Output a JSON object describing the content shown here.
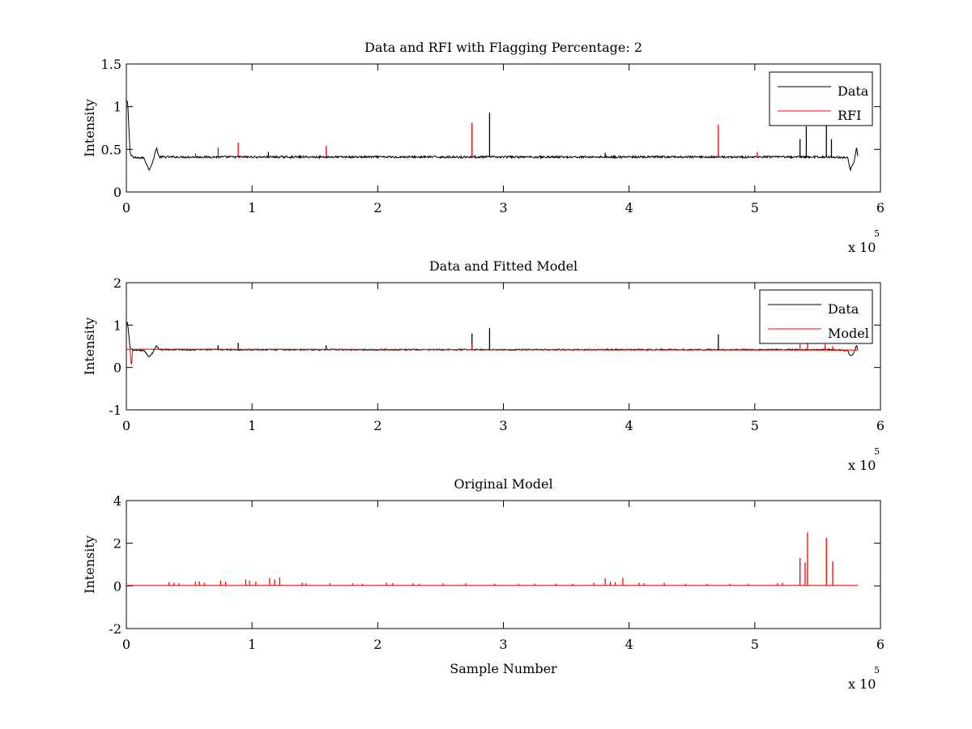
{
  "figure": {
    "background": "#ffffff"
  },
  "chart_data": [
    {
      "type": "line",
      "title": "Data and RFI with Flagging Percentage: 2",
      "xlabel": "",
      "ylabel": "Intensity",
      "xlim": [
        0,
        6
      ],
      "ylim": [
        0,
        1.5
      ],
      "x_multiplier_base": "x 10",
      "x_multiplier_exp": "5",
      "xticks": [
        0,
        1,
        2,
        3,
        4,
        5,
        6
      ],
      "xtick_labels": [
        "0",
        "1",
        "2",
        "3",
        "4",
        "5",
        "6"
      ],
      "yticks": [
        0,
        0.5,
        1,
        1.5
      ],
      "ytick_labels": [
        "0",
        "0.5",
        "1",
        "1.5"
      ],
      "legend_position": "top-right",
      "series": [
        {
          "name": "Data",
          "color": "#000000",
          "baseline": 0.41,
          "noise": 0.012,
          "x_end": 5.82,
          "start_value": 1.05,
          "features": [
            {
              "x": 0.0,
              "v": 1.05
            },
            {
              "x": 0.01,
              "v": 1.06
            },
            {
              "x": 0.03,
              "v": 0.45
            },
            {
              "x": 0.06,
              "v": 0.4
            },
            {
              "x": 0.14,
              "v": 0.4
            },
            {
              "x": 0.18,
              "v": 0.26
            },
            {
              "x": 0.21,
              "v": 0.35
            },
            {
              "x": 0.24,
              "v": 0.52
            },
            {
              "x": 0.26,
              "v": 0.41
            },
            {
              "x": 5.6,
              "v": 0.41
            },
            {
              "x": 5.74,
              "v": 0.4
            },
            {
              "x": 5.76,
              "v": 0.26
            },
            {
              "x": 5.79,
              "v": 0.35
            },
            {
              "x": 5.81,
              "v": 0.52
            },
            {
              "x": 5.82,
              "v": 0.42
            }
          ],
          "spikes": [
            {
              "x": 2.89,
              "v": 0.93
            },
            {
              "x": 5.36,
              "v": 0.62
            },
            {
              "x": 5.41,
              "v": 0.77
            },
            {
              "x": 5.57,
              "v": 0.8
            },
            {
              "x": 5.61,
              "v": 0.62
            },
            {
              "x": 1.13,
              "v": 0.47
            },
            {
              "x": 3.81,
              "v": 0.46
            }
          ]
        },
        {
          "name": "RFI",
          "color": "#ff0000",
          "spikes": [
            {
              "x": 0.55,
              "v": 0.45
            },
            {
              "x": 0.73,
              "v": 0.52
            },
            {
              "x": 0.89,
              "v": 0.58
            },
            {
              "x": 1.59,
              "v": 0.54
            },
            {
              "x": 2.75,
              "v": 0.81
            },
            {
              "x": 4.71,
              "v": 0.79
            },
            {
              "x": 5.02,
              "v": 0.47
            }
          ]
        }
      ]
    },
    {
      "type": "line",
      "title": "Data and Fitted Model",
      "xlabel": "",
      "ylabel": "Intensity",
      "xlim": [
        0,
        6
      ],
      "ylim": [
        -1,
        2
      ],
      "x_multiplier_base": "x 10",
      "x_multiplier_exp": "5",
      "xticks": [
        0,
        1,
        2,
        3,
        4,
        5,
        6
      ],
      "xtick_labels": [
        "0",
        "1",
        "2",
        "3",
        "4",
        "5",
        "6"
      ],
      "yticks": [
        -1,
        0,
        1,
        2
      ],
      "ytick_labels": [
        "-1",
        "0",
        "1",
        "2"
      ],
      "legend_position": "top-right",
      "series": [
        {
          "name": "Data",
          "color": "#000000",
          "baseline": 0.42,
          "noise": 0.015,
          "x_end": 5.82,
          "features": [
            {
              "x": 0.0,
              "v": 1.02
            },
            {
              "x": 0.01,
              "v": 1.05
            },
            {
              "x": 0.03,
              "v": 0.45
            },
            {
              "x": 0.06,
              "v": 0.4
            },
            {
              "x": 0.14,
              "v": 0.4
            },
            {
              "x": 0.18,
              "v": 0.25
            },
            {
              "x": 0.21,
              "v": 0.35
            },
            {
              "x": 0.24,
              "v": 0.52
            },
            {
              "x": 0.26,
              "v": 0.42
            },
            {
              "x": 5.6,
              "v": 0.42
            },
            {
              "x": 5.74,
              "v": 0.4
            },
            {
              "x": 5.76,
              "v": 0.26
            },
            {
              "x": 5.79,
              "v": 0.35
            },
            {
              "x": 5.81,
              "v": 0.52
            },
            {
              "x": 5.82,
              "v": 0.42
            }
          ],
          "spikes": [
            {
              "x": 2.75,
              "v": 0.8
            },
            {
              "x": 2.89,
              "v": 0.93
            },
            {
              "x": 4.71,
              "v": 0.78
            },
            {
              "x": 0.89,
              "v": 0.58
            },
            {
              "x": 0.73,
              "v": 0.52
            },
            {
              "x": 1.59,
              "v": 0.52
            }
          ]
        },
        {
          "name": "Model",
          "color": "#ff0000",
          "baseline": 0.43,
          "noise": 0.006,
          "x_end": 5.82,
          "features": [
            {
              "x": 0.0,
              "v": 0.43
            },
            {
              "x": 0.03,
              "v": 0.43
            },
            {
              "x": 0.04,
              "v": 0.0
            },
            {
              "x": 0.05,
              "v": 0.43
            },
            {
              "x": 5.82,
              "v": 0.41
            }
          ],
          "spikes": [
            {
              "x": 2.75,
              "v": 0.55
            },
            {
              "x": 5.36,
              "v": 0.55
            },
            {
              "x": 5.42,
              "v": 0.62
            },
            {
              "x": 5.56,
              "v": 0.55
            },
            {
              "x": 5.62,
              "v": 0.5
            }
          ]
        }
      ]
    },
    {
      "type": "line",
      "title": "Original Model",
      "xlabel": "Sample Number",
      "ylabel": "Intensity",
      "xlim": [
        0,
        6
      ],
      "ylim": [
        -2,
        4
      ],
      "x_multiplier_base": "x 10",
      "x_multiplier_exp": "5",
      "xticks": [
        0,
        1,
        2,
        3,
        4,
        5,
        6
      ],
      "xtick_labels": [
        "0",
        "1",
        "2",
        "3",
        "4",
        "5",
        "6"
      ],
      "yticks": [
        -2,
        0,
        2,
        4
      ],
      "ytick_labels": [
        "-2",
        "0",
        "2",
        "4"
      ],
      "legend_position": "none",
      "series": [
        {
          "name": "Original Model",
          "color": "#ff0000",
          "baseline": 0.02,
          "noise": 0.0,
          "x_end": 5.82,
          "features": [
            {
              "x": 0.0,
              "v": 0.02
            },
            {
              "x": 5.82,
              "v": 0.02
            }
          ],
          "spikes": [
            {
              "x": 0.34,
              "v": 0.18
            },
            {
              "x": 0.38,
              "v": 0.15
            },
            {
              "x": 0.42,
              "v": 0.12
            },
            {
              "x": 0.55,
              "v": 0.2
            },
            {
              "x": 0.58,
              "v": 0.22
            },
            {
              "x": 0.62,
              "v": 0.15
            },
            {
              "x": 0.75,
              "v": 0.25
            },
            {
              "x": 0.79,
              "v": 0.2
            },
            {
              "x": 0.95,
              "v": 0.3
            },
            {
              "x": 0.98,
              "v": 0.25
            },
            {
              "x": 1.03,
              "v": 0.2
            },
            {
              "x": 1.14,
              "v": 0.38
            },
            {
              "x": 1.18,
              "v": 0.3
            },
            {
              "x": 1.22,
              "v": 0.4
            },
            {
              "x": 1.4,
              "v": 0.15
            },
            {
              "x": 1.43,
              "v": 0.12
            },
            {
              "x": 1.62,
              "v": 0.12
            },
            {
              "x": 1.8,
              "v": 0.12
            },
            {
              "x": 1.88,
              "v": 0.1
            },
            {
              "x": 2.07,
              "v": 0.15
            },
            {
              "x": 2.12,
              "v": 0.13
            },
            {
              "x": 2.28,
              "v": 0.12
            },
            {
              "x": 2.33,
              "v": 0.1
            },
            {
              "x": 2.52,
              "v": 0.12
            },
            {
              "x": 2.7,
              "v": 0.12
            },
            {
              "x": 2.93,
              "v": 0.1
            },
            {
              "x": 3.12,
              "v": 0.1
            },
            {
              "x": 3.25,
              "v": 0.1
            },
            {
              "x": 3.42,
              "v": 0.1
            },
            {
              "x": 3.55,
              "v": 0.1
            },
            {
              "x": 3.72,
              "v": 0.15
            },
            {
              "x": 3.81,
              "v": 0.35
            },
            {
              "x": 3.85,
              "v": 0.2
            },
            {
              "x": 3.89,
              "v": 0.18
            },
            {
              "x": 3.95,
              "v": 0.38
            },
            {
              "x": 4.08,
              "v": 0.15
            },
            {
              "x": 4.12,
              "v": 0.12
            },
            {
              "x": 4.28,
              "v": 0.15
            },
            {
              "x": 4.45,
              "v": 0.1
            },
            {
              "x": 4.62,
              "v": 0.1
            },
            {
              "x": 4.8,
              "v": 0.1
            },
            {
              "x": 4.95,
              "v": 0.1
            },
            {
              "x": 5.18,
              "v": 0.12
            },
            {
              "x": 5.22,
              "v": 0.15
            },
            {
              "x": 5.36,
              "v": 1.3
            },
            {
              "x": 5.4,
              "v": 1.1
            },
            {
              "x": 5.42,
              "v": 2.5
            },
            {
              "x": 5.57,
              "v": 2.25
            },
            {
              "x": 5.62,
              "v": 1.15
            }
          ]
        }
      ]
    }
  ]
}
